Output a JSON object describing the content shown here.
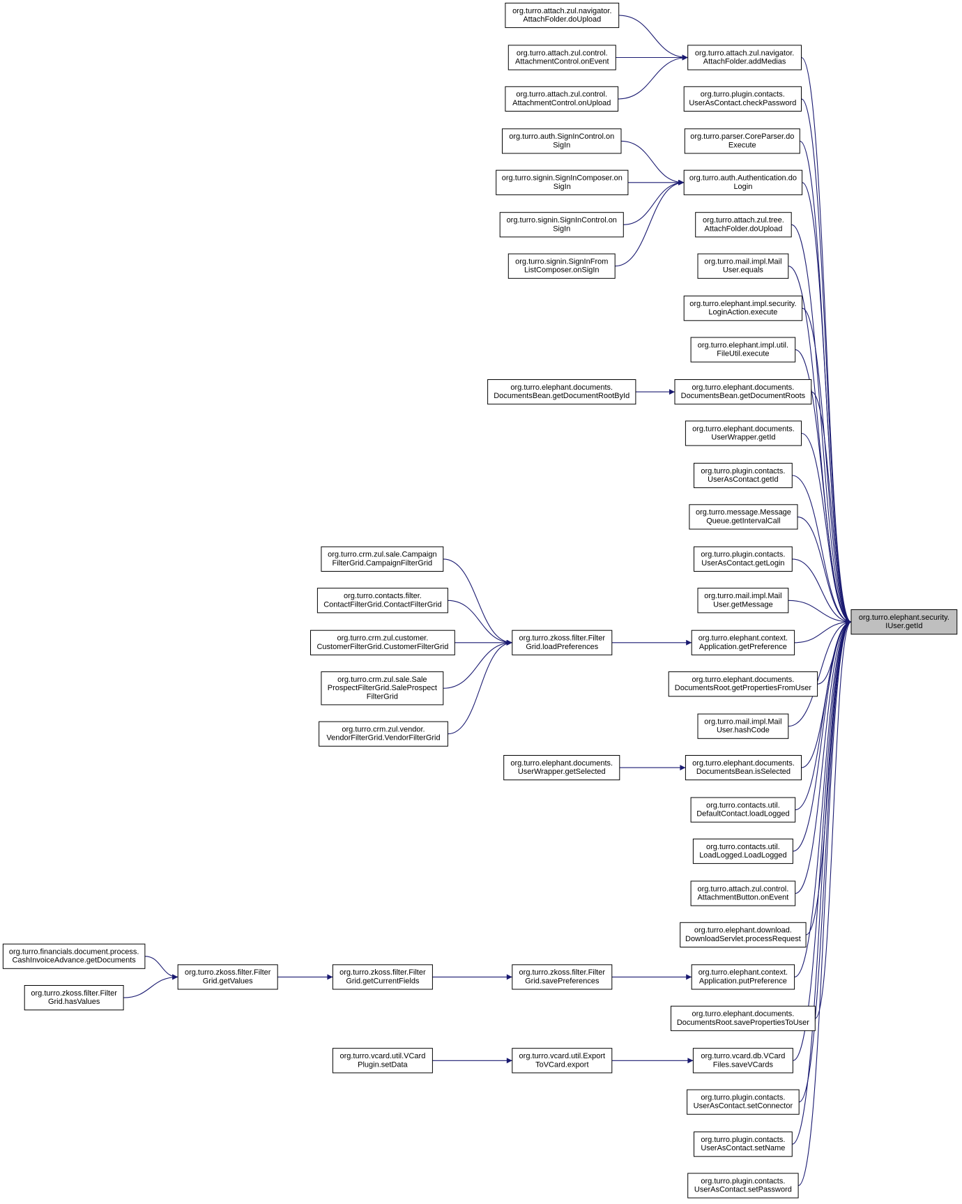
{
  "nodes": [
    {
      "label": [
        "org.turro.elephant.security.",
        "IUser.getId"
      ]
    },
    {
      "label": [
        "org.turro.attach.zul.navigator.",
        "AttachFolder.addMedias"
      ]
    },
    {
      "label": [
        "org.turro.plugin.contacts.",
        "UserAsContact.checkPassword"
      ]
    },
    {
      "label": [
        "org.turro.parser.CoreParser.do",
        "Execute"
      ]
    },
    {
      "label": [
        "org.turro.auth.Authentication.do",
        "Login"
      ]
    },
    {
      "label": [
        "org.turro.attach.zul.tree.",
        "AttachFolder.doUpload"
      ]
    },
    {
      "label": [
        "org.turro.mail.impl.Mail",
        "User.equals"
      ]
    },
    {
      "label": [
        "org.turro.elephant.impl.security.",
        "LoginAction.execute"
      ]
    },
    {
      "label": [
        "org.turro.elephant.impl.util.",
        "FileUtil.execute"
      ]
    },
    {
      "label": [
        "org.turro.elephant.documents.",
        "DocumentsBean.getDocumentRoots"
      ]
    },
    {
      "label": [
        "org.turro.elephant.documents.",
        "UserWrapper.getId"
      ]
    },
    {
      "label": [
        "org.turro.plugin.contacts.",
        "UserAsContact.getId"
      ]
    },
    {
      "label": [
        "org.turro.message.Message",
        "Queue.getIntervalCall"
      ]
    },
    {
      "label": [
        "org.turro.plugin.contacts.",
        "UserAsContact.getLogin"
      ]
    },
    {
      "label": [
        "org.turro.mail.impl.Mail",
        "User.getMessage"
      ]
    },
    {
      "label": [
        "org.turro.elephant.context.",
        "Application.getPreference"
      ]
    },
    {
      "label": [
        "org.turro.elephant.documents.",
        "DocumentsRoot.getPropertiesFromUser"
      ]
    },
    {
      "label": [
        "org.turro.mail.impl.Mail",
        "User.hashCode"
      ]
    },
    {
      "label": [
        "org.turro.elephant.documents.",
        "DocumentsBean.isSelected"
      ]
    },
    {
      "label": [
        "org.turro.contacts.util.",
        "DefaultContact.loadLogged"
      ]
    },
    {
      "label": [
        "org.turro.contacts.util.",
        "LoadLogged.LoadLogged"
      ]
    },
    {
      "label": [
        "org.turro.attach.zul.control.",
        "AttachmentButton.onEvent"
      ]
    },
    {
      "label": [
        "org.turro.elephant.download.",
        "DownloadServlet.processRequest"
      ]
    },
    {
      "label": [
        "org.turro.elephant.context.",
        "Application.putPreference"
      ]
    },
    {
      "label": [
        "org.turro.elephant.documents.",
        "DocumentsRoot.savePropertiesToUser"
      ]
    },
    {
      "label": [
        "org.turro.vcard.db.VCard",
        "Files.saveVCards"
      ]
    },
    {
      "label": [
        "org.turro.plugin.contacts.",
        "UserAsContact.setConnector"
      ]
    },
    {
      "label": [
        "org.turro.plugin.contacts.",
        "UserAsContact.setName"
      ]
    },
    {
      "label": [
        "org.turro.plugin.contacts.",
        "UserAsContact.setPassword"
      ]
    },
    {
      "label": [
        "org.turro.attach.zul.navigator.",
        "AttachFolder.doUpload"
      ]
    },
    {
      "label": [
        "org.turro.attach.zul.control.",
        "AttachmentControl.onEvent"
      ]
    },
    {
      "label": [
        "org.turro.attach.zul.control.",
        "AttachmentControl.onUpload"
      ]
    },
    {
      "label": [
        "org.turro.auth.SignInControl.on",
        "SigIn"
      ]
    },
    {
      "label": [
        "org.turro.signin.SignInComposer.on",
        "SigIn"
      ]
    },
    {
      "label": [
        "org.turro.signin.SignInControl.on",
        "SigIn"
      ]
    },
    {
      "label": [
        "org.turro.signin.SignInFrom",
        "ListComposer.onSigIn"
      ]
    },
    {
      "label": [
        "org.turro.elephant.documents.",
        "DocumentsBean.getDocumentRootById"
      ]
    },
    {
      "label": [
        "org.turro.zkoss.filter.Filter",
        "Grid.loadPreferences"
      ]
    },
    {
      "label": [
        "org.turro.elephant.documents.",
        "UserWrapper.getSelected"
      ]
    },
    {
      "label": [
        "org.turro.zkoss.filter.Filter",
        "Grid.savePreferences"
      ]
    },
    {
      "label": [
        "org.turro.vcard.util.Export",
        "ToVCard.export"
      ]
    },
    {
      "label": [
        "org.turro.crm.zul.sale.Campaign",
        "FilterGrid.CampaignFilterGrid"
      ]
    },
    {
      "label": [
        "org.turro.contacts.filter.",
        "ContactFilterGrid.ContactFilterGrid"
      ]
    },
    {
      "label": [
        "org.turro.crm.zul.customer.",
        "CustomerFilterGrid.CustomerFilterGrid"
      ]
    },
    {
      "label": [
        "org.turro.crm.zul.sale.Sale",
        "ProspectFilterGrid.SaleProspect",
        "FilterGrid"
      ]
    },
    {
      "label": [
        "org.turro.crm.zul.vendor.",
        "VendorFilterGrid.VendorFilterGrid"
      ]
    },
    {
      "label": [
        "org.turro.zkoss.filter.Filter",
        "Grid.getCurrentFields"
      ]
    },
    {
      "label": [
        "org.turro.vcard.util.VCard",
        "Plugin.setData"
      ]
    },
    {
      "label": [
        "org.turro.zkoss.filter.Filter",
        "Grid.getValues"
      ]
    },
    {
      "label": [
        "org.turro.financials.document.process.",
        "CashInvoiceAdvance.getDocuments"
      ]
    },
    {
      "label": [
        "org.turro.zkoss.filter.Filter",
        "Grid.hasValues"
      ]
    }
  ]
}
